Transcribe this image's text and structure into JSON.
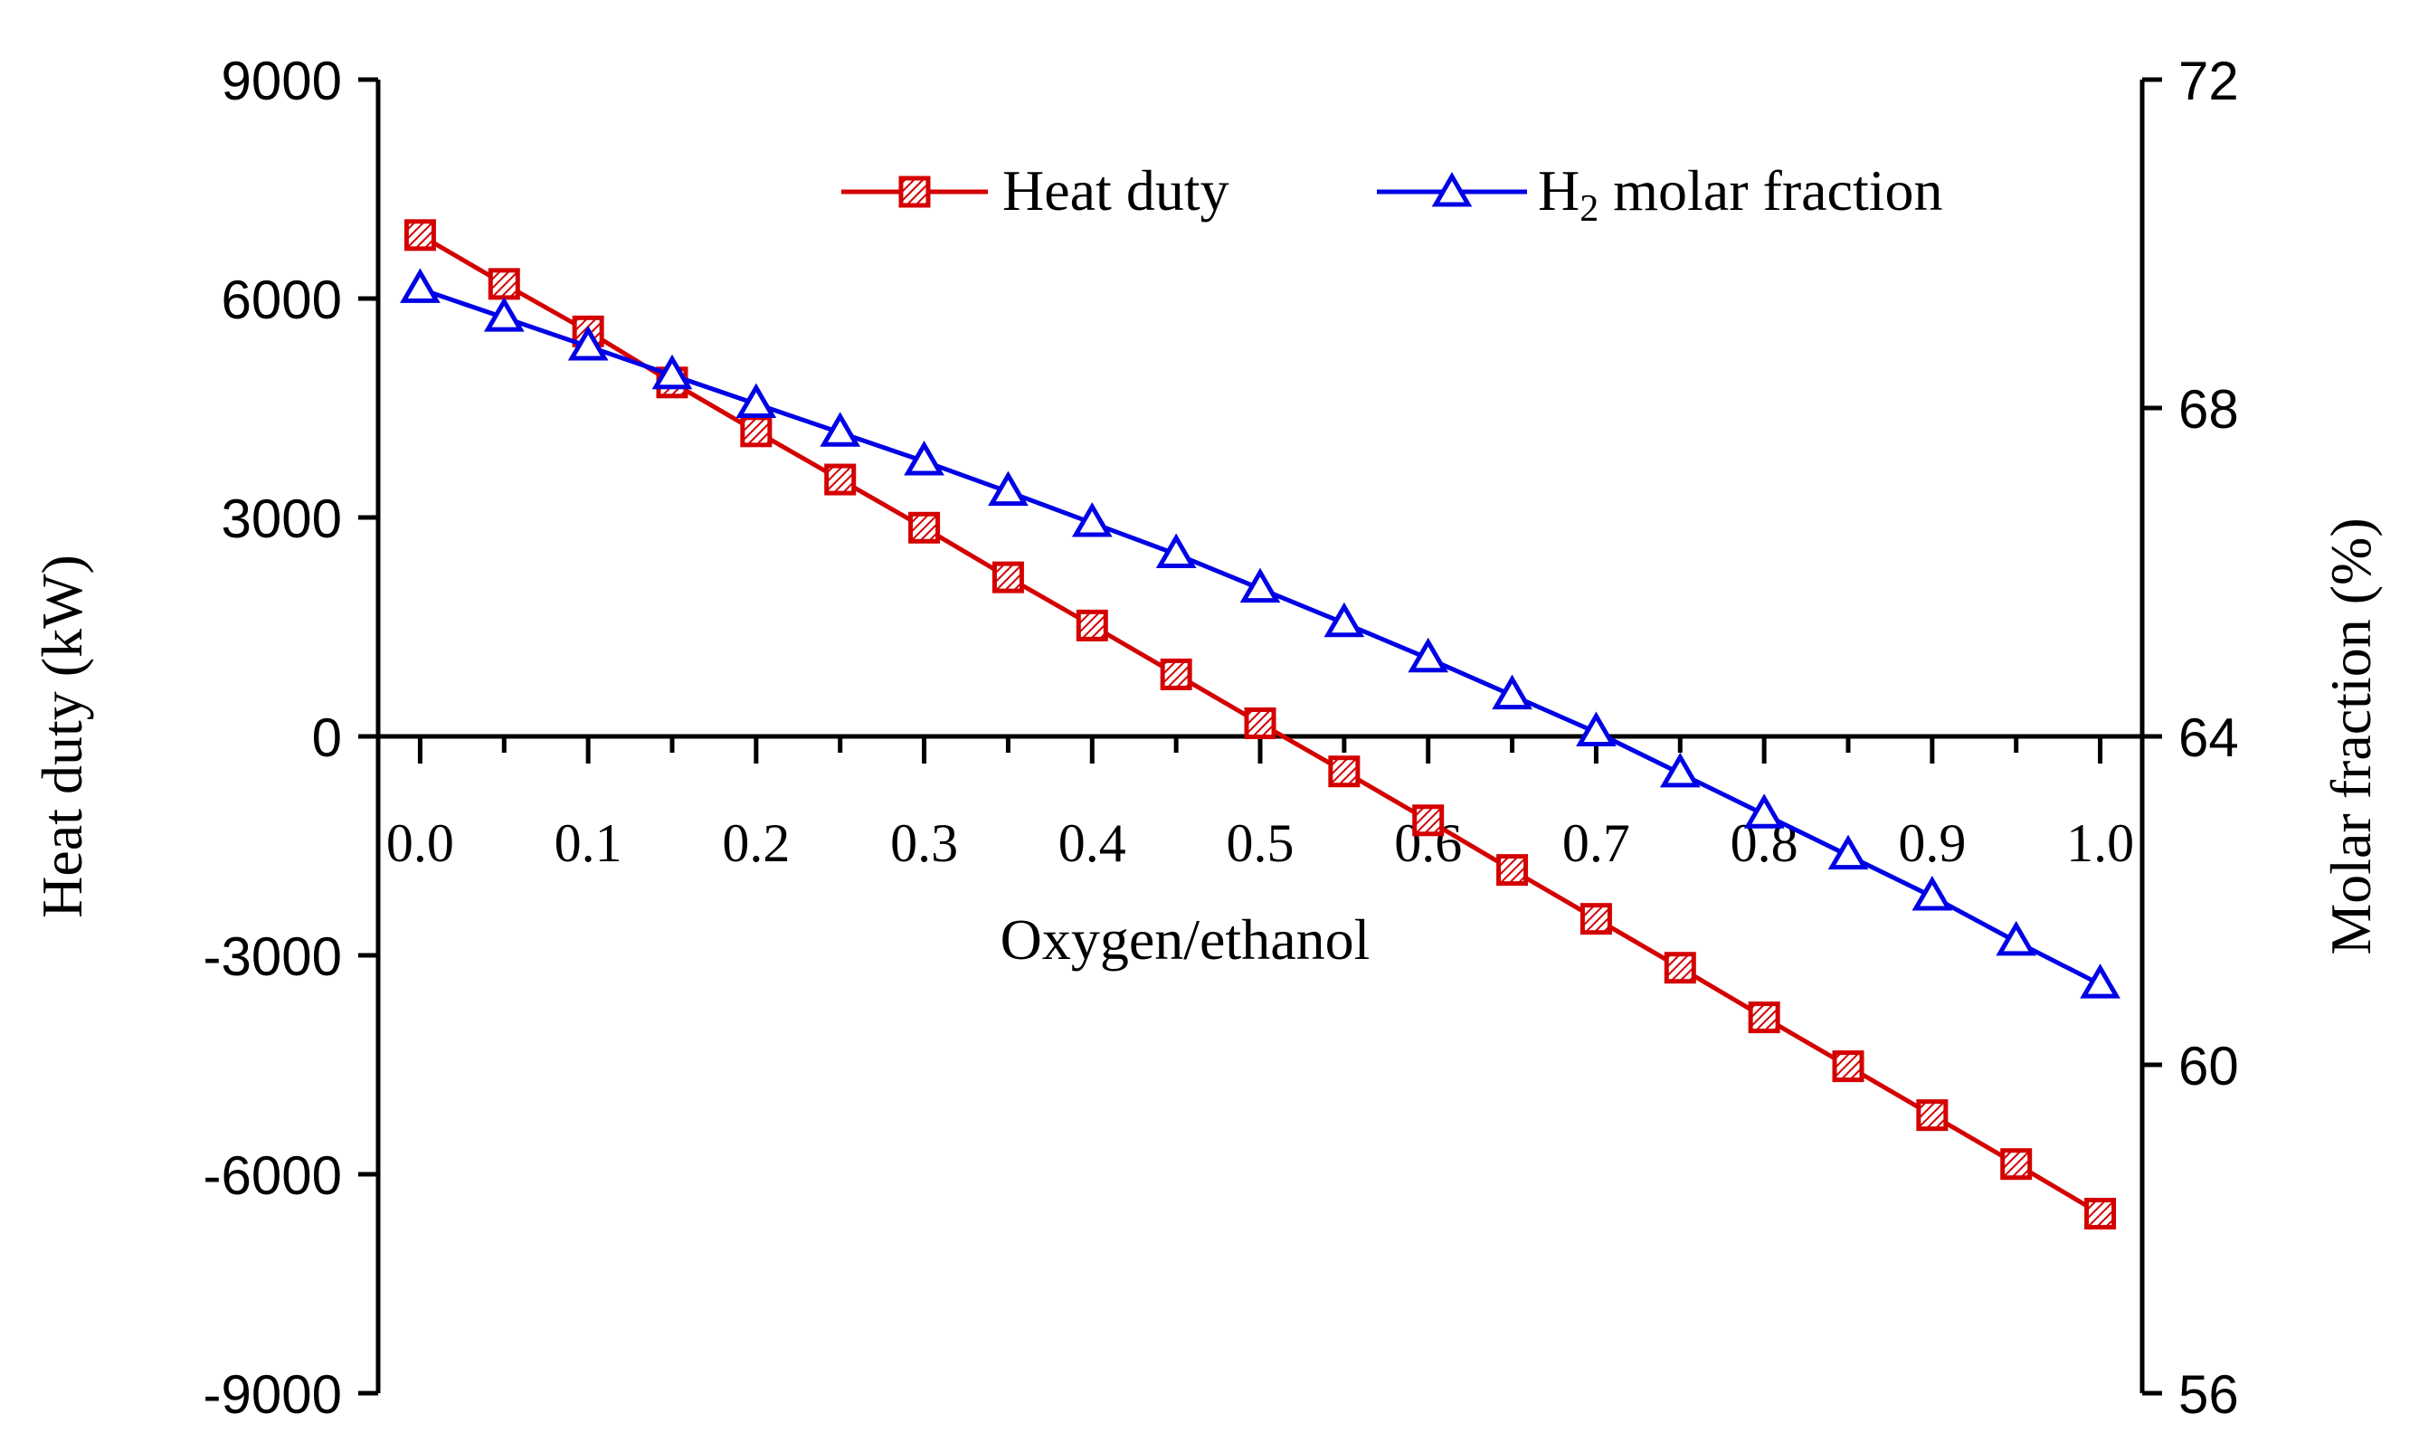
{
  "chart_data": {
    "type": "line",
    "title": "",
    "xlabel": "Oxygen/ethanol",
    "ylabel_left": "Heat duty (kW)",
    "ylabel_right": "Molar fraction (%)",
    "x": [
      0.0,
      0.05,
      0.1,
      0.15,
      0.2,
      0.25,
      0.3,
      0.35,
      0.4,
      0.45,
      0.5,
      0.55,
      0.6,
      0.65,
      0.7,
      0.75,
      0.8,
      0.85,
      0.9,
      0.95,
      1.0
    ],
    "xlim": [
      -0.025,
      1.025
    ],
    "x_ticks": [
      0.0,
      0.1,
      0.2,
      0.3,
      0.4,
      0.5,
      0.6,
      0.7,
      0.8,
      0.9,
      1.0
    ],
    "x_tick_labels": [
      "0.0",
      "0.1",
      "0.2",
      "0.3",
      "0.4",
      "0.5",
      "0.6",
      "0.7",
      "0.8",
      "0.9",
      "1.0"
    ],
    "ylim_left": [
      -9000,
      9000
    ],
    "y_ticks_left": [
      -9000,
      -6000,
      -3000,
      0,
      3000,
      6000,
      9000
    ],
    "y_tick_labels_left": [
      "-9000",
      "-6000",
      "-3000",
      "0",
      "3000",
      "6000",
      "9000"
    ],
    "ylim_right": [
      56,
      72
    ],
    "y_ticks_right": [
      56,
      60,
      64,
      68,
      72
    ],
    "y_tick_labels_right": [
      "56",
      "60",
      "64",
      "68",
      "72"
    ],
    "grid": false,
    "legend_position": "top-right",
    "series": [
      {
        "name": "Heat duty",
        "axis": "left",
        "color": "#d40000",
        "marker": "hatched-square",
        "values": [
          6870,
          6200,
          5550,
          4850,
          4180,
          3520,
          2860,
          2180,
          1520,
          850,
          180,
          -480,
          -1150,
          -1830,
          -2500,
          -3170,
          -3850,
          -4520,
          -5190,
          -5860,
          -6540
        ]
      },
      {
        "name": "H2 molar fraction",
        "legend_main": "H",
        "legend_sub": "2",
        "legend_rest": " molar fraction",
        "axis": "right",
        "color": "#0000e6",
        "marker": "triangle",
        "values": [
          69.45,
          69.1,
          68.75,
          68.4,
          68.05,
          67.7,
          67.35,
          66.98,
          66.6,
          66.22,
          65.8,
          65.38,
          64.95,
          64.5,
          64.05,
          63.55,
          63.05,
          62.55,
          62.05,
          61.5,
          60.98
        ]
      }
    ]
  }
}
